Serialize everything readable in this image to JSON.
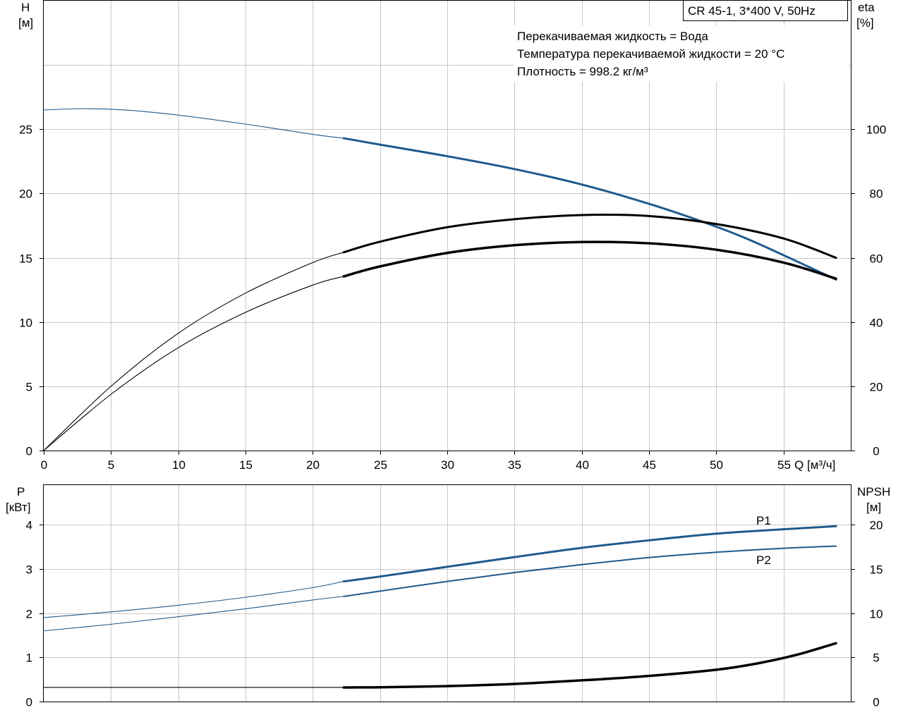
{
  "product_label": "CR 45-1, 3*400 V, 50Hz",
  "info_lines": [
    "Перекачиваемая жидкость = Вода",
    "Температура перекачиваемой жидкости = 20 °C",
    "Плотность = 998.2 кг/м³"
  ],
  "colors": {
    "blue": "#1f5a8c",
    "black": "#000000",
    "grid": "#c8c8c8"
  },
  "chart_data": [
    {
      "type": "line",
      "name": "top",
      "x_label": "Q [м³/ч]",
      "x_ticks": [
        0,
        5,
        10,
        15,
        20,
        25,
        30,
        35,
        40,
        45,
        50,
        55
      ],
      "xlim": [
        0,
        60
      ],
      "left_axis": {
        "label_line1": "H",
        "label_line2": "[м]",
        "ticks": [
          0,
          5,
          10,
          15,
          20,
          25
        ],
        "range": [
          0,
          35
        ]
      },
      "right_axis": {
        "label_line1": "eta",
        "label_line2": "[%]",
        "ticks": [
          0,
          20,
          40,
          60,
          80,
          100
        ],
        "range": [
          0,
          140
        ]
      },
      "grid": true,
      "series": [
        {
          "id": "H",
          "axis": "left",
          "color": "blue",
          "x": [
            0,
            3,
            6,
            10,
            15,
            20,
            22.3,
            25,
            30,
            35,
            40,
            45,
            49,
            52,
            55,
            58.9
          ],
          "y": [
            26.5,
            26.6,
            26.5,
            26.1,
            25.4,
            24.6,
            24.3,
            23.8,
            22.9,
            21.9,
            20.7,
            19.2,
            17.8,
            16.6,
            15.2,
            13.3
          ],
          "bold_from": 22.3
        },
        {
          "id": "eta",
          "axis": "right",
          "color": "black",
          "x": [
            0,
            5,
            10,
            15,
            20,
            22.3,
            25,
            30,
            35,
            40,
            45,
            50,
            55,
            58.9
          ],
          "y": [
            0,
            20,
            36.5,
            49,
            58.5,
            61.7,
            65,
            69.5,
            72,
            73.3,
            73,
            70.5,
            66,
            60
          ],
          "bold_from": 22.3
        },
        {
          "id": "eta-total",
          "axis": "right",
          "color": "black",
          "x": [
            0,
            5,
            10,
            15,
            20,
            22.3,
            25,
            30,
            35,
            40,
            45,
            50,
            55,
            58.9
          ],
          "y": [
            0,
            17.5,
            32,
            43,
            51.5,
            54.2,
            57.3,
            61.5,
            63.9,
            64.9,
            64.5,
            62.5,
            58.5,
            53.5
          ],
          "bold_from": 22.3,
          "bold_width": 3.5
        }
      ]
    },
    {
      "type": "line",
      "name": "bottom",
      "xlim": [
        0,
        60
      ],
      "left_axis": {
        "label_line1": "P",
        "label_line2": "[кВт]",
        "ticks": [
          0,
          1,
          2,
          3,
          4
        ],
        "range": [
          0,
          4.9
        ]
      },
      "right_axis": {
        "label_line1": "NPSH",
        "label_line2": "[м]",
        "ticks": [
          0,
          5,
          10,
          15,
          20
        ],
        "range": [
          0,
          24.5
        ]
      },
      "grid": true,
      "series": [
        {
          "id": "P1",
          "name": "P1",
          "axis": "left",
          "color": "blue",
          "x": [
            0,
            5,
            10,
            15,
            20,
            22.3,
            25,
            30,
            35,
            40,
            45,
            50,
            55,
            58.9
          ],
          "y": [
            1.9,
            2.03,
            2.18,
            2.36,
            2.58,
            2.72,
            2.83,
            3.05,
            3.27,
            3.48,
            3.65,
            3.8,
            3.9,
            3.97
          ],
          "bold_from": 22.3
        },
        {
          "id": "P2",
          "name": "P2",
          "axis": "left",
          "color": "blue",
          "x": [
            0,
            5,
            10,
            15,
            20,
            22.3,
            25,
            30,
            35,
            40,
            45,
            50,
            55,
            58.9
          ],
          "y": [
            1.6,
            1.75,
            1.92,
            2.1,
            2.3,
            2.38,
            2.5,
            2.72,
            2.92,
            3.1,
            3.26,
            3.38,
            3.47,
            3.52
          ],
          "bold_from": 22.3,
          "bold_width": 2
        },
        {
          "id": "NPSH",
          "axis": "right",
          "color": "black",
          "x": [
            0,
            22.3,
            25,
            30,
            35,
            40,
            45,
            50,
            53,
            56,
            58.9
          ],
          "y": [
            1.6,
            1.6,
            1.62,
            1.75,
            2.0,
            2.4,
            2.9,
            3.6,
            4.3,
            5.3,
            6.6
          ],
          "bold_from": 22.3,
          "bold_width": 3.5
        }
      ]
    }
  ]
}
